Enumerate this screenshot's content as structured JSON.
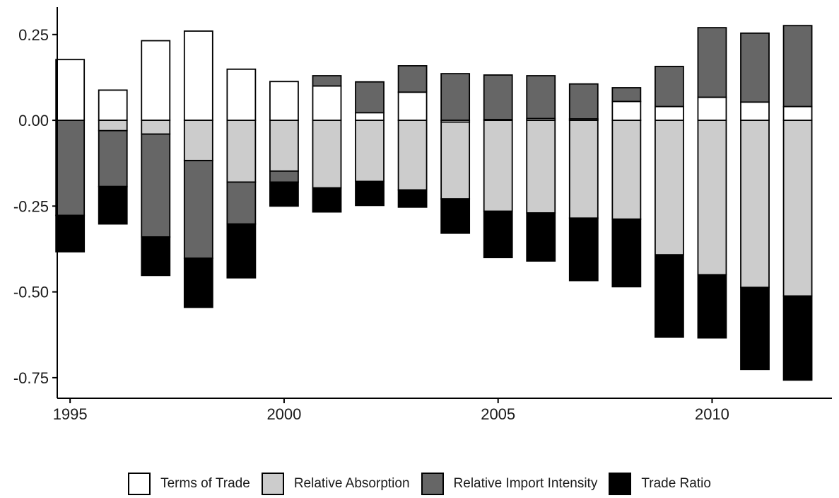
{
  "chart_data": {
    "type": "bar",
    "stacked": true,
    "diverging": true,
    "x": [
      1995,
      1996,
      1997,
      1998,
      1999,
      2000,
      2001,
      2002,
      2003,
      2004,
      2005,
      2006,
      2007,
      2008,
      2009,
      2010,
      2011,
      2012
    ],
    "series": [
      {
        "name": "Terms of Trade",
        "color": "#ffffff",
        "values": [
          0.177,
          0.088,
          0.232,
          0.26,
          0.149,
          0.113,
          0.1,
          0.022,
          0.082,
          -0.005,
          0.002,
          0.005,
          0.004,
          0.055,
          0.04,
          0.067,
          0.053,
          0.04
        ]
      },
      {
        "name": "Relative Absorption",
        "color": "#cccccc",
        "values": [
          0.0,
          -0.03,
          -0.04,
          -0.117,
          -0.18,
          -0.148,
          -0.197,
          -0.178,
          -0.203,
          -0.224,
          -0.265,
          -0.27,
          -0.285,
          -0.288,
          -0.392,
          -0.45,
          -0.487,
          -0.512
        ]
      },
      {
        "name": "Relative Import Intensity",
        "color": "#666666",
        "values": [
          -0.277,
          -0.163,
          -0.3,
          -0.285,
          -0.122,
          -0.032,
          0.03,
          0.09,
          0.077,
          0.136,
          0.13,
          0.125,
          0.102,
          0.04,
          0.117,
          0.203,
          0.201,
          0.236
        ]
      },
      {
        "name": "Trade Ratio",
        "color": "#000000",
        "values": [
          -0.106,
          -0.109,
          -0.112,
          -0.143,
          -0.157,
          -0.07,
          -0.07,
          -0.07,
          -0.05,
          -0.1,
          -0.135,
          -0.14,
          -0.182,
          -0.197,
          -0.24,
          -0.184,
          -0.239,
          -0.245
        ]
      }
    ],
    "title": "",
    "xlabel": "",
    "ylabel": "",
    "ylim": [
      -0.81,
      0.33
    ],
    "xlim": [
      1994.7,
      2012.8
    ],
    "y_ticks": [
      "0.25",
      "0.00",
      "-0.25",
      "-0.50",
      "-0.75"
    ],
    "x_ticks": [
      "1995",
      "2000",
      "2005",
      "2010"
    ],
    "legend_position": "bottom",
    "grid": false
  }
}
